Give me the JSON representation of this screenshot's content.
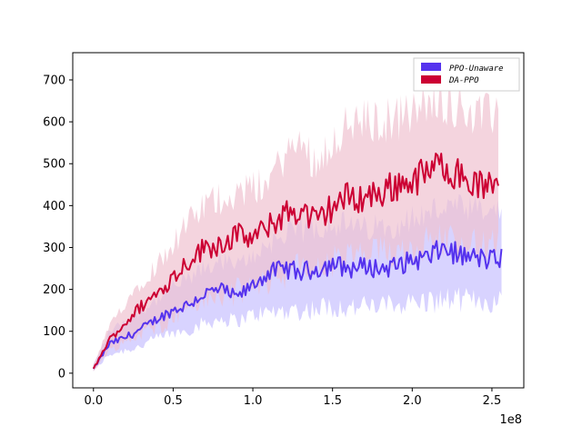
{
  "chart_data": {
    "type": "line",
    "x_multiplier_label": "1e8",
    "xlim": [
      -0.13,
      2.7
    ],
    "ylim": [
      -35,
      765
    ],
    "x_ticks": [
      0.0,
      0.5,
      1.0,
      1.5,
      2.0,
      2.5
    ],
    "x_tick_labels": [
      "0.0",
      "0.5",
      "1.0",
      "1.5",
      "2.0",
      "2.5"
    ],
    "y_ticks": [
      0,
      100,
      200,
      300,
      400,
      500,
      600,
      700
    ],
    "y_tick_labels": [
      "0",
      "100",
      "200",
      "300",
      "400",
      "500",
      "600",
      "700"
    ],
    "legend_position": "top-right",
    "series": [
      {
        "name": "PPO-Unaware",
        "color": "#5533ee",
        "band_color": "#c8c0ff",
        "x": [
          0.0,
          0.1,
          0.2,
          0.3,
          0.4,
          0.5,
          0.6,
          0.7,
          0.8,
          0.9,
          1.0,
          1.1,
          1.2,
          1.3,
          1.4,
          1.5,
          1.6,
          1.7,
          1.8,
          1.9,
          2.0,
          2.1,
          2.2,
          2.3,
          2.4,
          2.5,
          2.56
        ],
        "mean": [
          10,
          70,
          85,
          105,
          130,
          150,
          165,
          190,
          200,
          180,
          210,
          240,
          250,
          240,
          250,
          260,
          250,
          255,
          250,
          255,
          270,
          275,
          300,
          280,
          275,
          270,
          275
        ],
        "lower": [
          5,
          45,
          55,
          65,
          85,
          95,
          105,
          120,
          130,
          125,
          140,
          145,
          150,
          150,
          155,
          160,
          155,
          160,
          160,
          165,
          170,
          170,
          175,
          175,
          175,
          170,
          170
        ],
        "upper": [
          20,
          100,
          125,
          150,
          175,
          205,
          225,
          250,
          270,
          255,
          280,
          310,
          330,
          340,
          350,
          360,
          350,
          345,
          350,
          355,
          370,
          380,
          400,
          390,
          385,
          380,
          390
        ]
      },
      {
        "name": "DA-PPO",
        "color": "#cc0033",
        "band_color": "#f0c2d0",
        "x": [
          0.0,
          0.1,
          0.2,
          0.3,
          0.4,
          0.5,
          0.6,
          0.7,
          0.8,
          0.9,
          1.0,
          1.1,
          1.2,
          1.3,
          1.4,
          1.5,
          1.6,
          1.7,
          1.8,
          1.9,
          2.0,
          2.1,
          2.2,
          2.3,
          2.4,
          2.5,
          2.54
        ],
        "mean": [
          10,
          80,
          120,
          160,
          190,
          230,
          270,
          300,
          310,
          330,
          320,
          350,
          380,
          390,
          360,
          400,
          420,
          420,
          430,
          450,
          460,
          480,
          500,
          470,
          450,
          440,
          480
        ],
        "lower": [
          5,
          55,
          75,
          95,
          110,
          135,
          160,
          175,
          180,
          195,
          200,
          220,
          240,
          250,
          245,
          265,
          275,
          280,
          285,
          295,
          300,
          310,
          320,
          310,
          300,
          300,
          320
        ],
        "upper": [
          20,
          110,
          170,
          220,
          260,
          310,
          360,
          400,
          420,
          430,
          440,
          460,
          520,
          550,
          500,
          560,
          590,
          600,
          600,
          610,
          620,
          640,
          650,
          640,
          620,
          610,
          650
        ]
      }
    ]
  }
}
